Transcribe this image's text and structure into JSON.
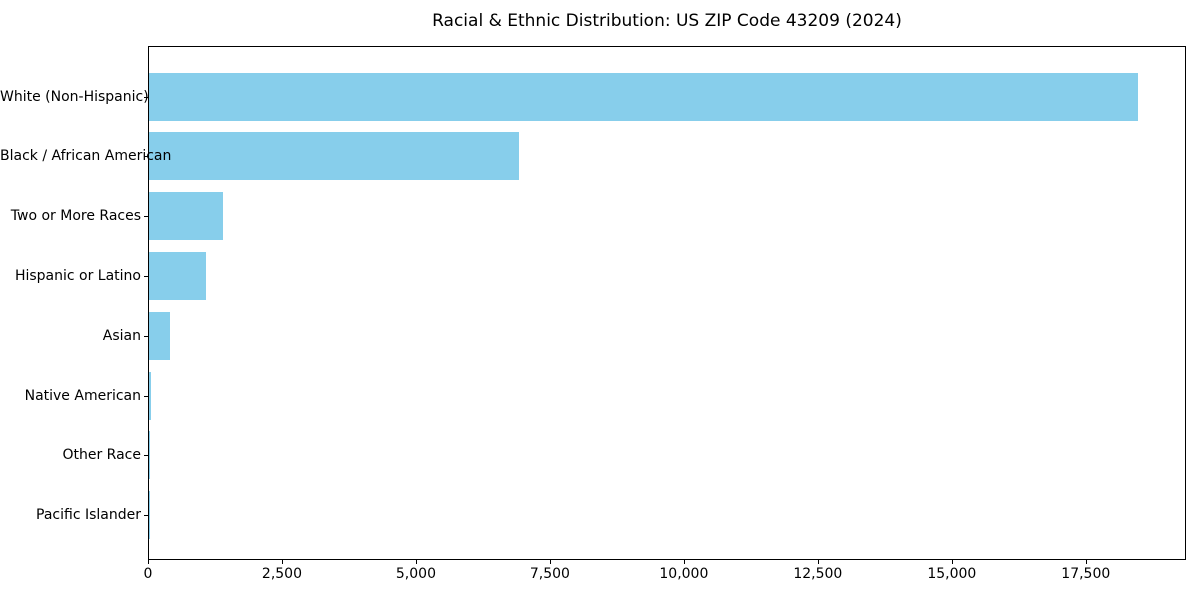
{
  "title": "Racial & Ethnic Distribution: US ZIP Code 43209 (2024)",
  "chart_data": {
    "type": "bar",
    "orientation": "horizontal",
    "title": "Racial & Ethnic Distribution: US ZIP Code 43209 (2024)",
    "categories": [
      "White (Non-Hispanic)",
      "Black / African American",
      "Two or More Races",
      "Hispanic or Latino",
      "Asian",
      "Native American",
      "Other Race",
      "Pacific Islander"
    ],
    "values": [
      18450,
      6900,
      1380,
      1070,
      390,
      30,
      15,
      5
    ],
    "xlabel": "",
    "ylabel": "",
    "xlim": [
      0,
      19370
    ],
    "x_ticks": [
      0,
      2500,
      5000,
      7500,
      10000,
      12500,
      15000,
      17500
    ],
    "x_tick_labels": [
      "0",
      "2,500",
      "5,000",
      "7,500",
      "10,000",
      "12,500",
      "15,000",
      "17,500"
    ],
    "bar_color": "#87CEEB",
    "background_color": "#ffffff",
    "axis_color": "#000000",
    "grid": false,
    "legend": null
  }
}
